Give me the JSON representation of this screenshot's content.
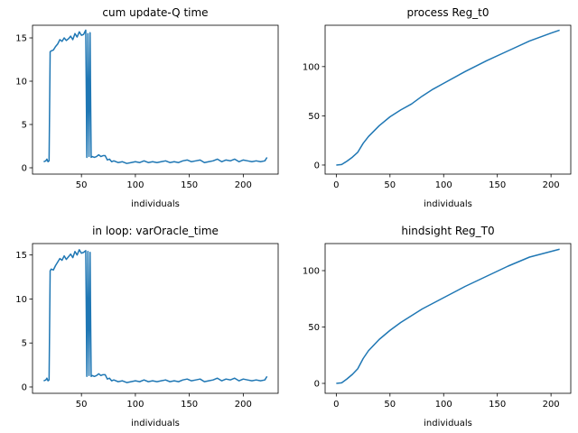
{
  "chart_data": [
    {
      "type": "line",
      "title": "cum update-Q time",
      "xlabel": "individuals",
      "color": "#1f77b4",
      "x": [
        15,
        17,
        18,
        19,
        20,
        21,
        22,
        24,
        26,
        28,
        30,
        32,
        34,
        36,
        38,
        40,
        42,
        44,
        46,
        48,
        50,
        52,
        54,
        55,
        56,
        57,
        58,
        59,
        60,
        62,
        64,
        66,
        68,
        70,
        72,
        74,
        76,
        78,
        80,
        84,
        88,
        92,
        96,
        100,
        104,
        108,
        112,
        116,
        120,
        124,
        128,
        132,
        136,
        140,
        144,
        148,
        152,
        156,
        160,
        164,
        168,
        172,
        176,
        180,
        184,
        188,
        192,
        196,
        200,
        204,
        208,
        212,
        216,
        220,
        222
      ],
      "values": [
        0.7,
        0.8,
        1.0,
        0.7,
        0.8,
        13.4,
        13.5,
        13.6,
        14.0,
        14.3,
        14.8,
        14.6,
        15.0,
        14.7,
        14.9,
        15.2,
        14.8,
        15.5,
        15.1,
        15.7,
        15.3,
        15.4,
        15.9,
        1.2,
        15.5,
        1.3,
        15.6,
        1.2,
        1.3,
        1.2,
        1.3,
        1.5,
        1.3,
        1.4,
        1.4,
        0.9,
        1.0,
        0.7,
        0.8,
        0.6,
        0.7,
        0.5,
        0.6,
        0.7,
        0.6,
        0.8,
        0.6,
        0.7,
        0.6,
        0.7,
        0.8,
        0.6,
        0.7,
        0.6,
        0.8,
        0.9,
        0.7,
        0.8,
        0.9,
        0.6,
        0.7,
        0.8,
        1.0,
        0.7,
        0.9,
        0.8,
        1.0,
        0.7,
        0.9,
        0.8,
        0.7,
        0.8,
        0.7,
        0.8,
        1.2
      ],
      "xlim": [
        4.65,
        232.35
      ],
      "ylim": [
        -0.73,
        16.46
      ],
      "xticks": [
        50,
        100,
        150,
        200
      ],
      "yticks": [
        0,
        5,
        10,
        15
      ]
    },
    {
      "type": "line",
      "title": "process Reg_t0",
      "xlabel": "individuals",
      "color": "#1f77b4",
      "x": [
        0,
        5,
        10,
        15,
        20,
        25,
        30,
        40,
        50,
        60,
        70,
        80,
        90,
        100,
        120,
        140,
        160,
        180,
        200,
        208
      ],
      "values": [
        0,
        0.5,
        4,
        8,
        13,
        22,
        29,
        40,
        49,
        56,
        62,
        70,
        77,
        83,
        95,
        106,
        116,
        126,
        134,
        137
      ],
      "xlim": [
        -10.4,
        218.4
      ],
      "ylim": [
        -9.2,
        142
      ],
      "xticks": [
        0,
        50,
        100,
        150,
        200
      ],
      "yticks": [
        0,
        50,
        100
      ]
    },
    {
      "type": "line",
      "title": "in loop: varOracle_time",
      "xlabel": "individuals",
      "color": "#1f77b4",
      "x": [
        15,
        17,
        18,
        19,
        20,
        21,
        22,
        24,
        26,
        28,
        30,
        32,
        34,
        36,
        38,
        40,
        42,
        44,
        46,
        48,
        50,
        52,
        54,
        55,
        56,
        57,
        58,
        59,
        60,
        62,
        64,
        66,
        68,
        70,
        72,
        74,
        76,
        78,
        80,
        84,
        88,
        92,
        96,
        100,
        104,
        108,
        112,
        116,
        120,
        124,
        128,
        132,
        136,
        140,
        144,
        148,
        152,
        156,
        160,
        164,
        168,
        172,
        176,
        180,
        184,
        188,
        192,
        196,
        200,
        204,
        208,
        212,
        216,
        220,
        222
      ],
      "values": [
        0.7,
        0.8,
        1.0,
        0.7,
        0.8,
        13.2,
        13.4,
        13.3,
        13.8,
        14.2,
        14.6,
        14.4,
        14.9,
        14.5,
        14.8,
        15.1,
        14.7,
        15.4,
        15.0,
        15.6,
        15.2,
        15.3,
        15.5,
        1.2,
        15.4,
        1.3,
        15.3,
        1.2,
        1.3,
        1.2,
        1.3,
        1.5,
        1.3,
        1.4,
        1.4,
        0.9,
        1.0,
        0.7,
        0.8,
        0.6,
        0.7,
        0.5,
        0.6,
        0.7,
        0.6,
        0.8,
        0.6,
        0.7,
        0.6,
        0.7,
        0.8,
        0.6,
        0.7,
        0.6,
        0.8,
        0.9,
        0.7,
        0.8,
        0.9,
        0.6,
        0.7,
        0.8,
        1.0,
        0.7,
        0.9,
        0.8,
        1.0,
        0.7,
        0.9,
        0.8,
        0.7,
        0.8,
        0.7,
        0.8,
        1.2
      ],
      "xlim": [
        4.65,
        232.35
      ],
      "ylim": [
        -0.72,
        16.3
      ],
      "xticks": [
        50,
        100,
        150,
        200
      ],
      "yticks": [
        0,
        5,
        10,
        15
      ]
    },
    {
      "type": "line",
      "title": "hindsight Reg_T0",
      "xlabel": "individuals",
      "color": "#1f77b4",
      "x": [
        0,
        5,
        10,
        15,
        20,
        25,
        30,
        40,
        50,
        60,
        70,
        80,
        90,
        100,
        120,
        140,
        160,
        180,
        200,
        208
      ],
      "values": [
        0,
        0.5,
        4,
        8,
        13,
        22,
        29,
        39,
        47,
        54,
        60,
        66,
        71,
        76,
        86,
        95,
        104,
        112,
        117,
        119
      ],
      "xlim": [
        -10.4,
        218.4
      ],
      "ylim": [
        -8.8,
        124
      ],
      "xticks": [
        0,
        50,
        100,
        150,
        200
      ],
      "yticks": [
        0,
        50,
        100
      ]
    }
  ]
}
